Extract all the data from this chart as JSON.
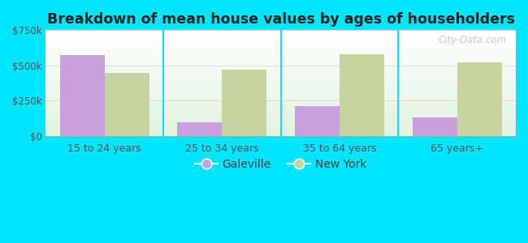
{
  "title": "Breakdown of mean house values by ages of householders",
  "categories": [
    "15 to 24 years",
    "25 to 34 years",
    "35 to 64 years",
    "65 years+"
  ],
  "galeville": [
    575000,
    100000,
    210000,
    130000
  ],
  "new_york": [
    445000,
    470000,
    580000,
    520000
  ],
  "galeville_color": "#c9a0dc",
  "new_york_color": "#c8d4a0",
  "ylim": [
    0,
    750000
  ],
  "yticks": [
    0,
    250000,
    500000,
    750000
  ],
  "ytick_labels": [
    "$0",
    "$250k",
    "$500k",
    "$750k"
  ],
  "plot_bg_top": "#ffffff",
  "plot_bg_bottom": "#e0f0e0",
  "outer_background": "#00e5ff",
  "legend_galeville": "Galeville",
  "legend_new_york": "New York",
  "watermark": "City-Data.com",
  "bar_width": 0.38
}
